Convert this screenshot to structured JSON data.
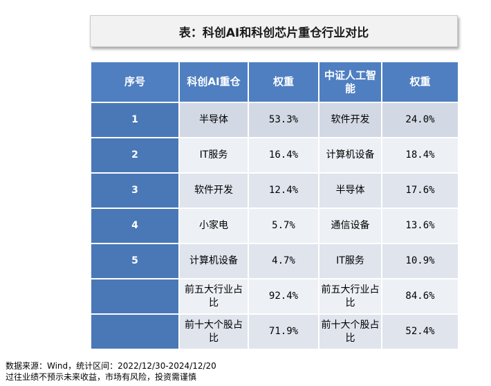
{
  "title": "表：科创AI和科创芯片重仓行业对比",
  "headers": [
    "序号",
    "科创AI重仓",
    "权重",
    "中证人工智能",
    "权重"
  ],
  "rows": [
    {
      "rank": "1",
      "a_industry": "半导体",
      "a_weight": "53.3%",
      "b_industry": "软件开发",
      "b_weight": "24.0%"
    },
    {
      "rank": "2",
      "a_industry": "IT服务",
      "a_weight": "16.4%",
      "b_industry": "计算机设备",
      "b_weight": "18.4%"
    },
    {
      "rank": "3",
      "a_industry": "软件开发",
      "a_weight": "12.4%",
      "b_industry": "半导体",
      "b_weight": "17.6%"
    },
    {
      "rank": "4",
      "a_industry": "小家电",
      "a_weight": "5.7%",
      "b_industry": "通信设备",
      "b_weight": "13.6%"
    },
    {
      "rank": "5",
      "a_industry": "计算机设备",
      "a_weight": "4.7%",
      "b_industry": "IT服务",
      "b_weight": "10.9%"
    },
    {
      "rank": "",
      "a_industry": "前五大行业占比",
      "a_weight": "92.4%",
      "b_industry": "前五大行业占比",
      "b_weight": "84.6%"
    },
    {
      "rank": "",
      "a_industry": "前十大个股占比",
      "a_weight": "71.9%",
      "b_industry": "前十大个股占比",
      "b_weight": "52.4%"
    }
  ],
  "footer": {
    "source": "数据来源：Wind，统计区间：2022/12/30-2024/12/20",
    "disclaimer": "过往业绩不预示未来收益，市场有风险，投资需谨慎"
  }
}
